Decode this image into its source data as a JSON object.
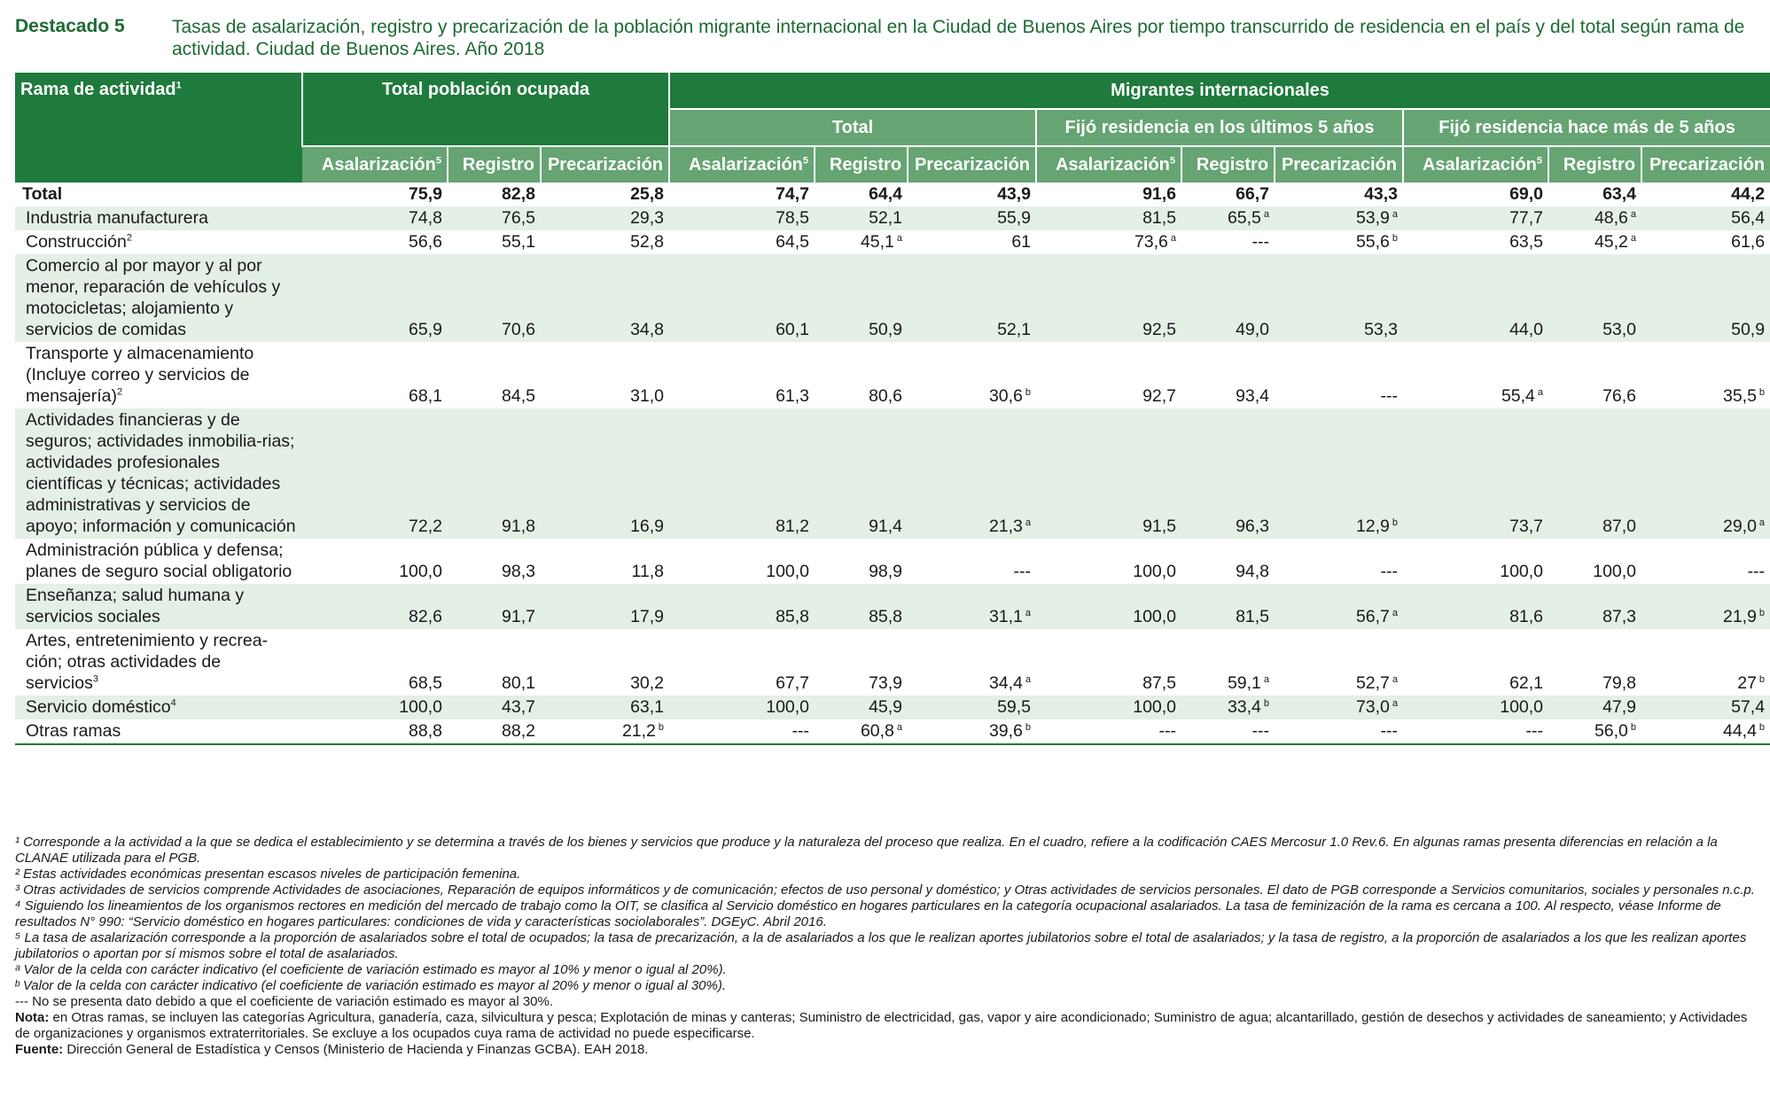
{
  "header": {
    "label": "Destacado 5",
    "title": "Tasas de asalarización, registro y precarización de la población migrante internacional en la Ciudad de Buenos Aires por tiempo transcurrido de residencia en el país y del total según rama de actividad. Ciudad de Buenos Aires. Año 2018"
  },
  "columns": {
    "rama": "Rama de actividad",
    "rama_sup": "1",
    "total_poblacion": "Total población ocupada",
    "migrantes": "Migrantes internacionales",
    "groups": [
      "Total",
      "Fijó residencia en los últimos 5 años",
      "Fijó residencia hace más de 5 años"
    ],
    "metrics": [
      "Asalarización",
      "Registro",
      "Precarización"
    ],
    "asal_sup": "5"
  },
  "rows": [
    {
      "label": "Total",
      "sup": "",
      "values": [
        "75,9",
        "82,8",
        "25,8",
        "74,7",
        "64,4",
        "43,9",
        "91,6",
        "66,7",
        "43,3",
        "69,0",
        "63,4",
        "44,2"
      ],
      "notes": [
        "",
        "",
        "",
        "",
        "",
        "",
        "",
        "",
        "",
        "",
        "",
        ""
      ]
    },
    {
      "label": "Industria manufacturera",
      "sup": "",
      "values": [
        "74,8",
        "76,5",
        "29,3",
        "78,5",
        "52,1",
        "55,9",
        "81,5",
        "65,5",
        "53,9",
        "77,7",
        "48,6",
        "56,4"
      ],
      "notes": [
        "",
        "",
        "",
        "",
        "",
        "",
        "",
        "a",
        "a",
        "",
        "a",
        ""
      ]
    },
    {
      "label": "Construcción",
      "sup": "2",
      "values": [
        "56,6",
        "55,1",
        "52,8",
        "64,5",
        "45,1",
        "61",
        "73,6",
        "---",
        "55,6",
        "63,5",
        "45,2",
        "61,6"
      ],
      "notes": [
        "",
        "",
        "",
        "",
        "a",
        "",
        "a",
        "",
        "b",
        "",
        "a",
        ""
      ]
    },
    {
      "label": "Comercio al por mayor y al por menor, reparación de vehículos y motocicletas; alojamiento y servicios de comidas",
      "sup": "",
      "values": [
        "65,9",
        "70,6",
        "34,8",
        "60,1",
        "50,9",
        "52,1",
        "92,5",
        "49,0",
        "53,3",
        "44,0",
        "53,0",
        "50,9"
      ],
      "notes": [
        "",
        "",
        "",
        "",
        "",
        "",
        "",
        "",
        "",
        "",
        "",
        ""
      ]
    },
    {
      "label": "Transporte y almacenamiento (Incluye correo y servicios de mensajería)",
      "sup": "2",
      "values": [
        "68,1",
        "84,5",
        "31,0",
        "61,3",
        "80,6",
        "30,6",
        "92,7",
        "93,4",
        "---",
        "55,4",
        "76,6",
        "35,5"
      ],
      "notes": [
        "",
        "",
        "",
        "",
        "",
        "b",
        "",
        "",
        "",
        "a",
        "",
        "b"
      ]
    },
    {
      "label": "Actividades financieras y de seguros; actividades inmobilia-rias; actividades profesionales científicas y técnicas; actividades administrativas y servicios de apoyo; información y comunicación",
      "sup": "",
      "values": [
        "72,2",
        "91,8",
        "16,9",
        "81,2",
        "91,4",
        "21,3",
        "91,5",
        "96,3",
        "12,9",
        "73,7",
        "87,0",
        "29,0"
      ],
      "notes": [
        "",
        "",
        "",
        "",
        "",
        "a",
        "",
        "",
        "b",
        "",
        "",
        "a"
      ]
    },
    {
      "label": "Administración pública y defensa; planes de seguro social obligatorio",
      "sup": "",
      "values": [
        "100,0",
        "98,3",
        "11,8",
        "100,0",
        "98,9",
        "---",
        "100,0",
        "94,8",
        "---",
        "100,0",
        "100,0",
        "---"
      ],
      "notes": [
        "",
        "",
        "",
        "",
        "",
        "",
        "",
        "",
        "",
        "",
        "",
        ""
      ]
    },
    {
      "label": "Enseñanza; salud humana y servicios sociales",
      "sup": "",
      "values": [
        "82,6",
        "91,7",
        "17,9",
        "85,8",
        "85,8",
        "31,1",
        "100,0",
        "81,5",
        "56,7",
        "81,6",
        "87,3",
        "21,9"
      ],
      "notes": [
        "",
        "",
        "",
        "",
        "",
        "a",
        "",
        "",
        "a",
        "",
        "",
        "b"
      ]
    },
    {
      "label": "Artes, entretenimiento y recrea-ción; otras actividades de servicios",
      "sup": "3",
      "values": [
        "68,5",
        "80,1",
        "30,2",
        "67,7",
        "73,9",
        "34,4",
        "87,5",
        "59,1",
        "52,7",
        "62,1",
        "79,8",
        "27"
      ],
      "notes": [
        "",
        "",
        "",
        "",
        "",
        "a",
        "",
        "a",
        "a",
        "",
        "",
        "b"
      ]
    },
    {
      "label": "Servicio doméstico",
      "sup": "4",
      "values": [
        "100,0",
        "43,7",
        "63,1",
        "100,0",
        "45,9",
        "59,5",
        "100,0",
        "33,4",
        "73,0",
        "100,0",
        "47,9",
        "57,4"
      ],
      "notes": [
        "",
        "",
        "",
        "",
        "",
        "",
        "",
        "b",
        "a",
        "",
        "",
        ""
      ]
    },
    {
      "label": "Otras ramas",
      "sup": "",
      "values": [
        "88,8",
        "88,2",
        "21,2",
        "---",
        "60,8",
        "39,6",
        "---",
        "---",
        "---",
        "---",
        "56,0",
        "44,4"
      ],
      "notes": [
        "",
        "",
        "b",
        "",
        "a",
        "b",
        "",
        "",
        "",
        "",
        "b",
        "b"
      ]
    }
  ],
  "notes": {
    "n1": "¹ Corresponde a la actividad a la que se dedica el establecimiento y se determina a través de los bienes y servicios que produce y la naturaleza del proceso que realiza. En el cuadro, refiere a la codificación CAES Mercosur 1.0 Rev.6. En algunas ramas presenta diferencias en relación a la CLANAE utilizada para el PGB.",
    "n2": "² Estas actividades económicas presentan escasos niveles de participación femenina.",
    "n3": "³ Otras actividades de servicios comprende Actividades de asociaciones, Reparación de equipos informáticos y de comunicación; efectos de uso personal y doméstico; y Otras actividades de servicios personales. El dato de PGB corresponde a  Servicios comunitarios, sociales y personales n.c.p.",
    "n4": "⁴ Siguiendo los lineamientos de los organismos rectores en medición del mercado de trabajo como la OIT, se clasifica al Servicio doméstico en hogares particulares en la categoría ocupacional asalariados. La tasa de feminización de la rama es cercana a 100. Al respecto, véase Informe de resultados N° 990: “Servicio doméstico en hogares particulares: condiciones de vida y características sociolaborales”. DGEyC. Abril 2016.",
    "n5": "⁵ La tasa de asalarización corresponde a la proporción de asalariados sobre el total de ocupados; la tasa de precarización, a la de asalariados a los que le realizan aportes jubilatorios sobre el total de asalariados; y  la tasa de registro, a la proporción de asalariados a los que les realizan aportes jubilatorios o aportan por sí mismos sobre el total de asalariados.",
    "na": "ᵃ Valor de la celda con carácter indicativo (el coeficiente de variación estimado es mayor al 10% y menor o igual al 20%).",
    "nb": "ᵇ Valor de la celda con carácter indicativo (el coeficiente de variación estimado es mayor al 20% y menor o igual al 30%).",
    "ndash": "--- No se presenta dato debido a que el coeficiente de variación estimado es mayor al 30%.",
    "nota_label": "Nota:",
    "nota_text": " en Otras ramas, se incluyen las categorías Agricultura, ganadería, caza, silvicultura y pesca; Explotación de minas y canteras; Suministro de electricidad, gas, vapor y aire acondicionado; Suministro de agua; alcantarillado, gestión de desechos y actividades de saneamiento; y Actividades de organizaciones y organismos extraterritoriales. Se excluye a los ocupados cuya rama de actividad no puede especificarse.",
    "fuente_label": "Fuente:",
    "fuente_text": " Dirección General de Estadística y Censos (Ministerio de Hacienda y Finanzas GCBA). EAH 2018."
  }
}
